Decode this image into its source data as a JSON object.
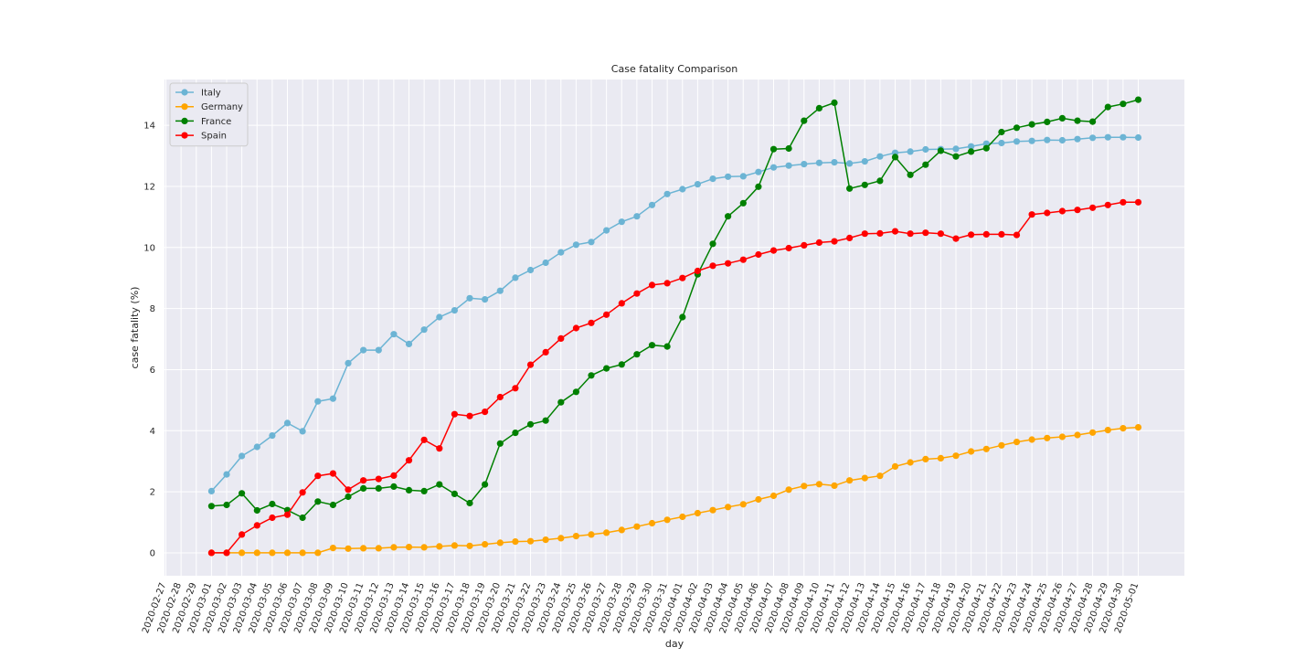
{
  "chart_data": {
    "type": "line",
    "title": "Case fatality Comparison",
    "xlabel": "day",
    "ylabel": "case fatality (%)",
    "x_tick_labels": [
      "2020-02-27",
      "2020-02-28",
      "2020-02-29",
      "2020-03-01",
      "2020-03-02",
      "2020-03-03",
      "2020-03-04",
      "2020-03-05",
      "2020-03-06",
      "2020-03-07",
      "2020-03-08",
      "2020-03-09",
      "2020-03-10",
      "2020-03-11",
      "2020-03-12",
      "2020-03-13",
      "2020-03-14",
      "2020-03-15",
      "2020-03-16",
      "2020-03-17",
      "2020-03-18",
      "2020-03-19",
      "2020-03-20",
      "2020-03-21",
      "2020-03-22",
      "2020-03-23",
      "2020-03-24",
      "2020-03-25",
      "2020-03-26",
      "2020-03-27",
      "2020-03-28",
      "2020-03-29",
      "2020-03-30",
      "2020-03-31",
      "2020-04-01",
      "2020-04-02",
      "2020-04-03",
      "2020-04-04",
      "2020-04-05",
      "2020-04-06",
      "2020-04-07",
      "2020-04-08",
      "2020-04-09",
      "2020-04-10",
      "2020-04-11",
      "2020-04-12",
      "2020-04-13",
      "2020-04-14",
      "2020-04-15",
      "2020-04-16",
      "2020-04-17",
      "2020-04-18",
      "2020-04-19",
      "2020-04-20",
      "2020-04-21",
      "2020-04-22",
      "2020-04-23",
      "2020-04-24",
      "2020-04-25",
      "2020-04-26",
      "2020-04-27",
      "2020-04-28",
      "2020-04-29",
      "2020-04-30",
      "2020-05-01"
    ],
    "x": [
      "2020-03-01",
      "2020-03-02",
      "2020-03-03",
      "2020-03-04",
      "2020-03-05",
      "2020-03-06",
      "2020-03-07",
      "2020-03-08",
      "2020-03-09",
      "2020-03-10",
      "2020-03-11",
      "2020-03-12",
      "2020-03-13",
      "2020-03-14",
      "2020-03-15",
      "2020-03-16",
      "2020-03-17",
      "2020-03-18",
      "2020-03-19",
      "2020-03-20",
      "2020-03-21",
      "2020-03-22",
      "2020-03-23",
      "2020-03-24",
      "2020-03-25",
      "2020-03-26",
      "2020-03-27",
      "2020-03-28",
      "2020-03-29",
      "2020-03-30",
      "2020-03-31",
      "2020-04-01",
      "2020-04-02",
      "2020-04-03",
      "2020-04-04",
      "2020-04-05",
      "2020-04-06",
      "2020-04-07",
      "2020-04-08",
      "2020-04-09",
      "2020-04-10",
      "2020-04-11",
      "2020-04-12",
      "2020-04-13",
      "2020-04-14",
      "2020-04-15",
      "2020-04-16",
      "2020-04-17",
      "2020-04-18",
      "2020-04-19",
      "2020-04-20",
      "2020-04-21",
      "2020-04-22",
      "2020-04-23",
      "2020-04-24",
      "2020-04-25",
      "2020-04-26",
      "2020-04-27",
      "2020-04-28",
      "2020-04-29",
      "2020-04-30",
      "2020-05-01"
    ],
    "ylim": [
      -0.75,
      15.5
    ],
    "y_ticks": [
      0,
      2,
      4,
      6,
      8,
      10,
      12,
      14
    ],
    "grid": true,
    "legend_position": "top-left",
    "series": [
      {
        "name": "Italy",
        "color": "#6cb4d4",
        "values": [
          2.02,
          2.57,
          3.17,
          3.47,
          3.84,
          4.25,
          3.98,
          4.96,
          5.05,
          6.21,
          6.64,
          6.64,
          7.16,
          6.84,
          7.31,
          7.72,
          7.94,
          8.34,
          8.3,
          8.58,
          9.01,
          9.26,
          9.5,
          9.84,
          10.09,
          10.18,
          10.56,
          10.84,
          11.02,
          11.39,
          11.75,
          11.91,
          12.07,
          12.25,
          12.32,
          12.33,
          12.47,
          12.62,
          12.68,
          12.73,
          12.77,
          12.79,
          12.75,
          12.82,
          12.98,
          13.1,
          13.14,
          13.21,
          13.22,
          13.23,
          13.31,
          13.4,
          13.42,
          13.47,
          13.49,
          13.52,
          13.51,
          13.55,
          13.59,
          13.61,
          13.61,
          13.6
        ]
      },
      {
        "name": "Germany",
        "color": "#ffa500",
        "values": [
          0.0,
          0.0,
          0.0,
          0.0,
          0.0,
          0.0,
          0.0,
          0.0,
          0.16,
          0.14,
          0.15,
          0.15,
          0.18,
          0.19,
          0.18,
          0.21,
          0.24,
          0.23,
          0.28,
          0.33,
          0.37,
          0.38,
          0.43,
          0.48,
          0.55,
          0.6,
          0.66,
          0.75,
          0.86,
          0.97,
          1.08,
          1.18,
          1.3,
          1.4,
          1.5,
          1.59,
          1.75,
          1.87,
          2.07,
          2.19,
          2.25,
          2.2,
          2.37,
          2.45,
          2.52,
          2.83,
          2.96,
          3.07,
          3.1,
          3.18,
          3.32,
          3.4,
          3.52,
          3.63,
          3.71,
          3.76,
          3.8,
          3.86,
          3.94,
          4.02,
          4.08,
          4.11
        ]
      },
      {
        "name": "France",
        "color": "#008000",
        "values": [
          1.53,
          1.57,
          1.95,
          1.39,
          1.6,
          1.4,
          1.15,
          1.68,
          1.57,
          1.84,
          2.11,
          2.11,
          2.17,
          2.05,
          2.02,
          2.24,
          1.93,
          1.63,
          2.24,
          3.58,
          3.93,
          4.21,
          4.33,
          4.93,
          5.27,
          5.81,
          6.04,
          6.17,
          6.5,
          6.8,
          6.76,
          7.72,
          9.12,
          10.12,
          11.02,
          11.45,
          11.99,
          13.22,
          13.24,
          14.15,
          14.56,
          14.74,
          11.93,
          12.05,
          12.18,
          12.96,
          12.38,
          12.71,
          13.17,
          12.98,
          13.14,
          13.25,
          13.78,
          13.92,
          14.03,
          14.11,
          14.23,
          14.15,
          14.12,
          14.6,
          14.7,
          14.84
        ]
      },
      {
        "name": "Spain",
        "color": "#ff0000",
        "values": [
          0.0,
          0.0,
          0.6,
          0.9,
          1.15,
          1.25,
          1.98,
          2.52,
          2.6,
          2.07,
          2.37,
          2.42,
          2.53,
          3.03,
          3.7,
          3.42,
          4.54,
          4.48,
          4.62,
          5.1,
          5.39,
          6.16,
          6.57,
          7.02,
          7.36,
          7.53,
          7.8,
          8.17,
          8.49,
          8.77,
          8.83,
          9.0,
          9.23,
          9.4,
          9.48,
          9.6,
          9.77,
          9.9,
          9.98,
          10.07,
          10.16,
          10.2,
          10.31,
          10.45,
          10.46,
          10.53,
          10.45,
          10.48,
          10.45,
          10.29,
          10.42,
          10.43,
          10.43,
          10.41,
          11.08,
          11.13,
          11.19,
          11.23,
          11.3,
          11.39,
          11.48,
          11.48
        ]
      }
    ]
  }
}
